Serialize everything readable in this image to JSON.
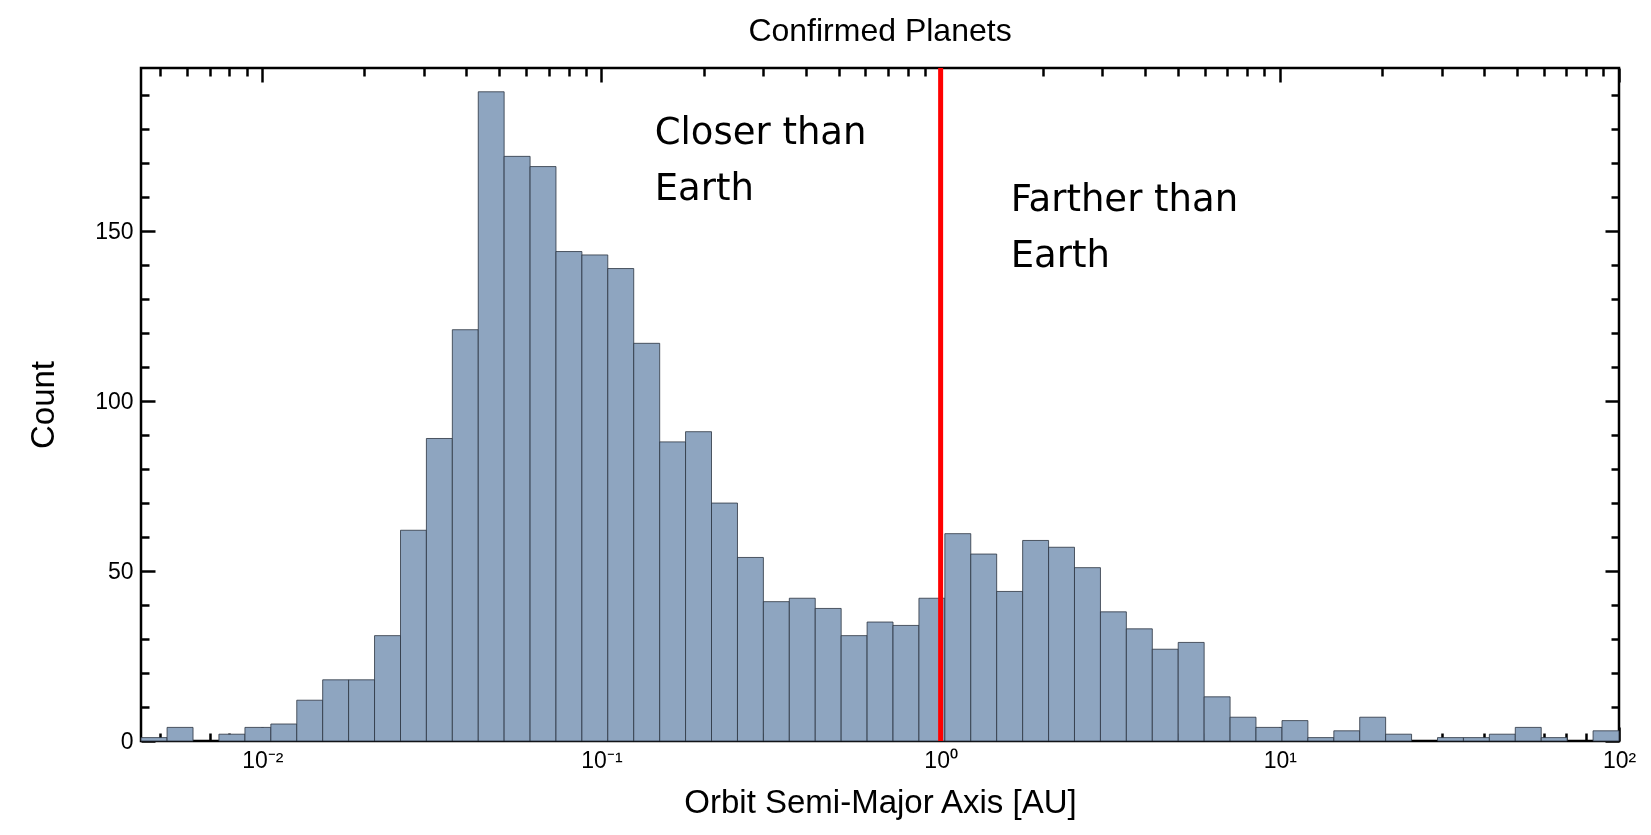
{
  "chart_data": {
    "type": "histogram",
    "title": "Confirmed Planets",
    "xlabel": "Orbit Semi-Major Axis [AU]",
    "ylabel": "Count",
    "bins": [
      0.00439,
      0.00524,
      0.00625,
      0.00745,
      0.00889,
      0.0106,
      0.01264,
      0.01507,
      0.01797,
      0.02143,
      0.02556,
      0.03047,
      0.03634,
      0.04333,
      0.05165,
      0.0616,
      0.07344,
      0.08757,
      0.1044,
      0.1245,
      0.1485,
      0.177,
      0.2111,
      0.2518,
      0.3002,
      0.358,
      0.4269,
      0.509,
      0.607,
      0.7238,
      0.8631,
      1.029,
      1.227,
      1.463,
      1.745,
      2.081,
      2.481,
      2.959,
      3.528,
      4.208,
      5.017,
      5.983,
      7.135,
      8.507,
      10.15,
      12.1,
      14.43,
      17.2,
      20.51,
      24.46,
      29.17,
      34.78,
      41.48,
      49.46,
      58.98,
      70.33,
      83.86,
      100
    ],
    "values": [
      1,
      4,
      0,
      2,
      4,
      5,
      12,
      18,
      18,
      31,
      62,
      89,
      121,
      191,
      172,
      169,
      144,
      143,
      139,
      117,
      88,
      91,
      70,
      54,
      41,
      42,
      39,
      31,
      35,
      34,
      42,
      61,
      55,
      44,
      59,
      57,
      51,
      38,
      33,
      27,
      29,
      13,
      7,
      4,
      6,
      1,
      3,
      7,
      2,
      0,
      1,
      1,
      2,
      4,
      1,
      0,
      3
    ],
    "color": "#8ea5c0",
    "log": "x",
    "grid": false,
    "xlim": [
      0.00439,
      100
    ],
    "xticks": [
      {
        "value": 0.005,
        "label": null
      },
      {
        "value": 0.006,
        "label": null
      },
      {
        "value": 0.007,
        "label": null
      },
      {
        "value": 0.008,
        "label": null
      },
      {
        "value": 0.009,
        "label": null
      },
      {
        "value": 0.01,
        "label": "10⁻²"
      },
      {
        "value": 0.02,
        "label": null
      },
      {
        "value": 0.03,
        "label": null
      },
      {
        "value": 0.04,
        "label": null
      },
      {
        "value": 0.05,
        "label": null
      },
      {
        "value": 0.06,
        "label": null
      },
      {
        "value": 0.07,
        "label": null
      },
      {
        "value": 0.08,
        "label": null
      },
      {
        "value": 0.09,
        "label": null
      },
      {
        "value": 0.1,
        "label": "10⁻¹"
      },
      {
        "value": 0.2,
        "label": null
      },
      {
        "value": 0.3,
        "label": null
      },
      {
        "value": 0.4,
        "label": null
      },
      {
        "value": 0.5,
        "label": null
      },
      {
        "value": 0.6,
        "label": null
      },
      {
        "value": 0.7,
        "label": null
      },
      {
        "value": 0.8,
        "label": null
      },
      {
        "value": 0.9,
        "label": null
      },
      {
        "value": 1,
        "label": "10⁰"
      },
      {
        "value": 2,
        "label": null
      },
      {
        "value": 3,
        "label": null
      },
      {
        "value": 4,
        "label": null
      },
      {
        "value": 5,
        "label": null
      },
      {
        "value": 6,
        "label": null
      },
      {
        "value": 7,
        "label": null
      },
      {
        "value": 8,
        "label": null
      },
      {
        "value": 9,
        "label": null
      },
      {
        "value": 10,
        "label": "10¹"
      },
      {
        "value": 20,
        "label": null
      },
      {
        "value": 30,
        "label": null
      },
      {
        "value": 40,
        "label": null
      },
      {
        "value": 50,
        "label": null
      },
      {
        "value": 60,
        "label": null
      },
      {
        "value": 70,
        "label": null
      },
      {
        "value": 80,
        "label": null
      },
      {
        "value": 90,
        "label": null
      },
      {
        "value": 100,
        "label": "10²"
      }
    ],
    "ylim": [
      0,
      198
    ],
    "yticks": [
      0,
      {
        "value": 10,
        "label": null
      },
      {
        "value": 20,
        "label": null
      },
      {
        "value": 30,
        "label": null
      },
      {
        "value": 40,
        "label": null
      },
      50,
      {
        "value": 60,
        "label": null
      },
      {
        "value": 70,
        "label": null
      },
      {
        "value": 80,
        "label": null
      },
      {
        "value": 90,
        "label": null
      },
      100,
      {
        "value": 110,
        "label": null
      },
      {
        "value": 120,
        "label": null
      },
      {
        "value": 130,
        "label": null
      },
      {
        "value": 140,
        "label": null
      },
      150,
      {
        "value": 160,
        "label": null
      },
      {
        "value": 170,
        "label": null
      },
      {
        "value": 180,
        "label": null
      },
      {
        "value": 190,
        "label": null
      }
    ],
    "ref_lines": [
      {
        "axis": "x",
        "value": 1,
        "color": "#ff0000"
      }
    ],
    "annotations": [
      "Closer than\nEarth",
      "Farther than\nEarth"
    ]
  }
}
